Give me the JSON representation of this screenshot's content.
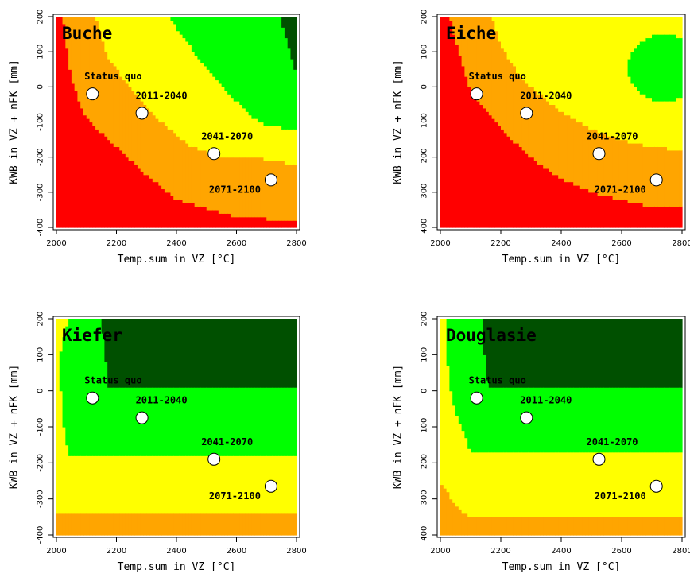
{
  "colors": {
    "red": "#ff0000",
    "orange": "#ffa500",
    "yellow": "#ffff00",
    "green": "#00ff00",
    "darkgreen": "#005000",
    "point_fill": "#ffffff",
    "point_stroke": "#000000"
  },
  "chart_data": [
    {
      "type": "heatmap",
      "title": "Buche",
      "xlabel": "Temp.sum in VZ [°C]",
      "ylabel": "KWB in VZ + nFK [mm]",
      "xlim": [
        2000,
        2800
      ],
      "ylim": [
        -400,
        200
      ],
      "xticks": [
        2000,
        2200,
        2400,
        2600,
        2800
      ],
      "yticks": [
        -400,
        -300,
        -200,
        -100,
        0,
        100,
        200
      ],
      "class_order": [
        "red",
        "orange",
        "yellow",
        "green",
        "darkgreen"
      ],
      "points": [
        {
          "label": "Status quo",
          "x": 2120,
          "y": -20
        },
        {
          "label": "2011-2040",
          "x": 2285,
          "y": -75
        },
        {
          "label": "2041-2070",
          "x": 2525,
          "y": -190
        },
        {
          "label": "2071-2100",
          "x": 2715,
          "y": -265
        }
      ]
    },
    {
      "type": "heatmap",
      "title": "Eiche",
      "xlabel": "Temp.sum in VZ [°C]",
      "ylabel": "KWB in VZ + nFK [mm]",
      "xlim": [
        2000,
        2800
      ],
      "ylim": [
        -400,
        200
      ],
      "xticks": [
        2000,
        2200,
        2400,
        2600,
        2800
      ],
      "yticks": [
        -400,
        -300,
        -200,
        -100,
        0,
        100,
        200
      ],
      "class_order": [
        "red",
        "orange",
        "yellow",
        "green",
        "darkgreen"
      ],
      "points": [
        {
          "label": "Status quo",
          "x": 2120,
          "y": -20
        },
        {
          "label": "2011-2040",
          "x": 2285,
          "y": -75
        },
        {
          "label": "2041-2070",
          "x": 2525,
          "y": -190
        },
        {
          "label": "2071-2100",
          "x": 2715,
          "y": -265
        }
      ]
    },
    {
      "type": "heatmap",
      "title": "Kiefer",
      "xlabel": "Temp.sum in VZ [°C]",
      "ylabel": "KWB in VZ + nFK [mm]",
      "xlim": [
        2000,
        2800
      ],
      "ylim": [
        -400,
        200
      ],
      "xticks": [
        2000,
        2200,
        2400,
        2600,
        2800
      ],
      "yticks": [
        -400,
        -300,
        -200,
        -100,
        0,
        100,
        200
      ],
      "class_order": [
        "red",
        "orange",
        "yellow",
        "green",
        "darkgreen"
      ],
      "points": [
        {
          "label": "Status quo",
          "x": 2120,
          "y": -20
        },
        {
          "label": "2011-2040",
          "x": 2285,
          "y": -75
        },
        {
          "label": "2041-2070",
          "x": 2525,
          "y": -190
        },
        {
          "label": "2071-2100",
          "x": 2715,
          "y": -265
        }
      ]
    },
    {
      "type": "heatmap",
      "title": "Douglasie",
      "xlabel": "Temp.sum in VZ [°C]",
      "ylabel": "KWB in VZ + nFK [mm]",
      "xlim": [
        2000,
        2800
      ],
      "ylim": [
        -400,
        200
      ],
      "xticks": [
        2000,
        2200,
        2400,
        2600,
        2800
      ],
      "yticks": [
        -400,
        -300,
        -200,
        -100,
        0,
        100,
        200
      ],
      "class_order": [
        "red",
        "orange",
        "yellow",
        "green",
        "darkgreen"
      ],
      "points": [
        {
          "label": "Status quo",
          "x": 2120,
          "y": -20
        },
        {
          "label": "2011-2040",
          "x": 2285,
          "y": -75
        },
        {
          "label": "2041-2070",
          "x": 2525,
          "y": -190
        },
        {
          "label": "2071-2100",
          "x": 2715,
          "y": -265
        }
      ]
    }
  ]
}
